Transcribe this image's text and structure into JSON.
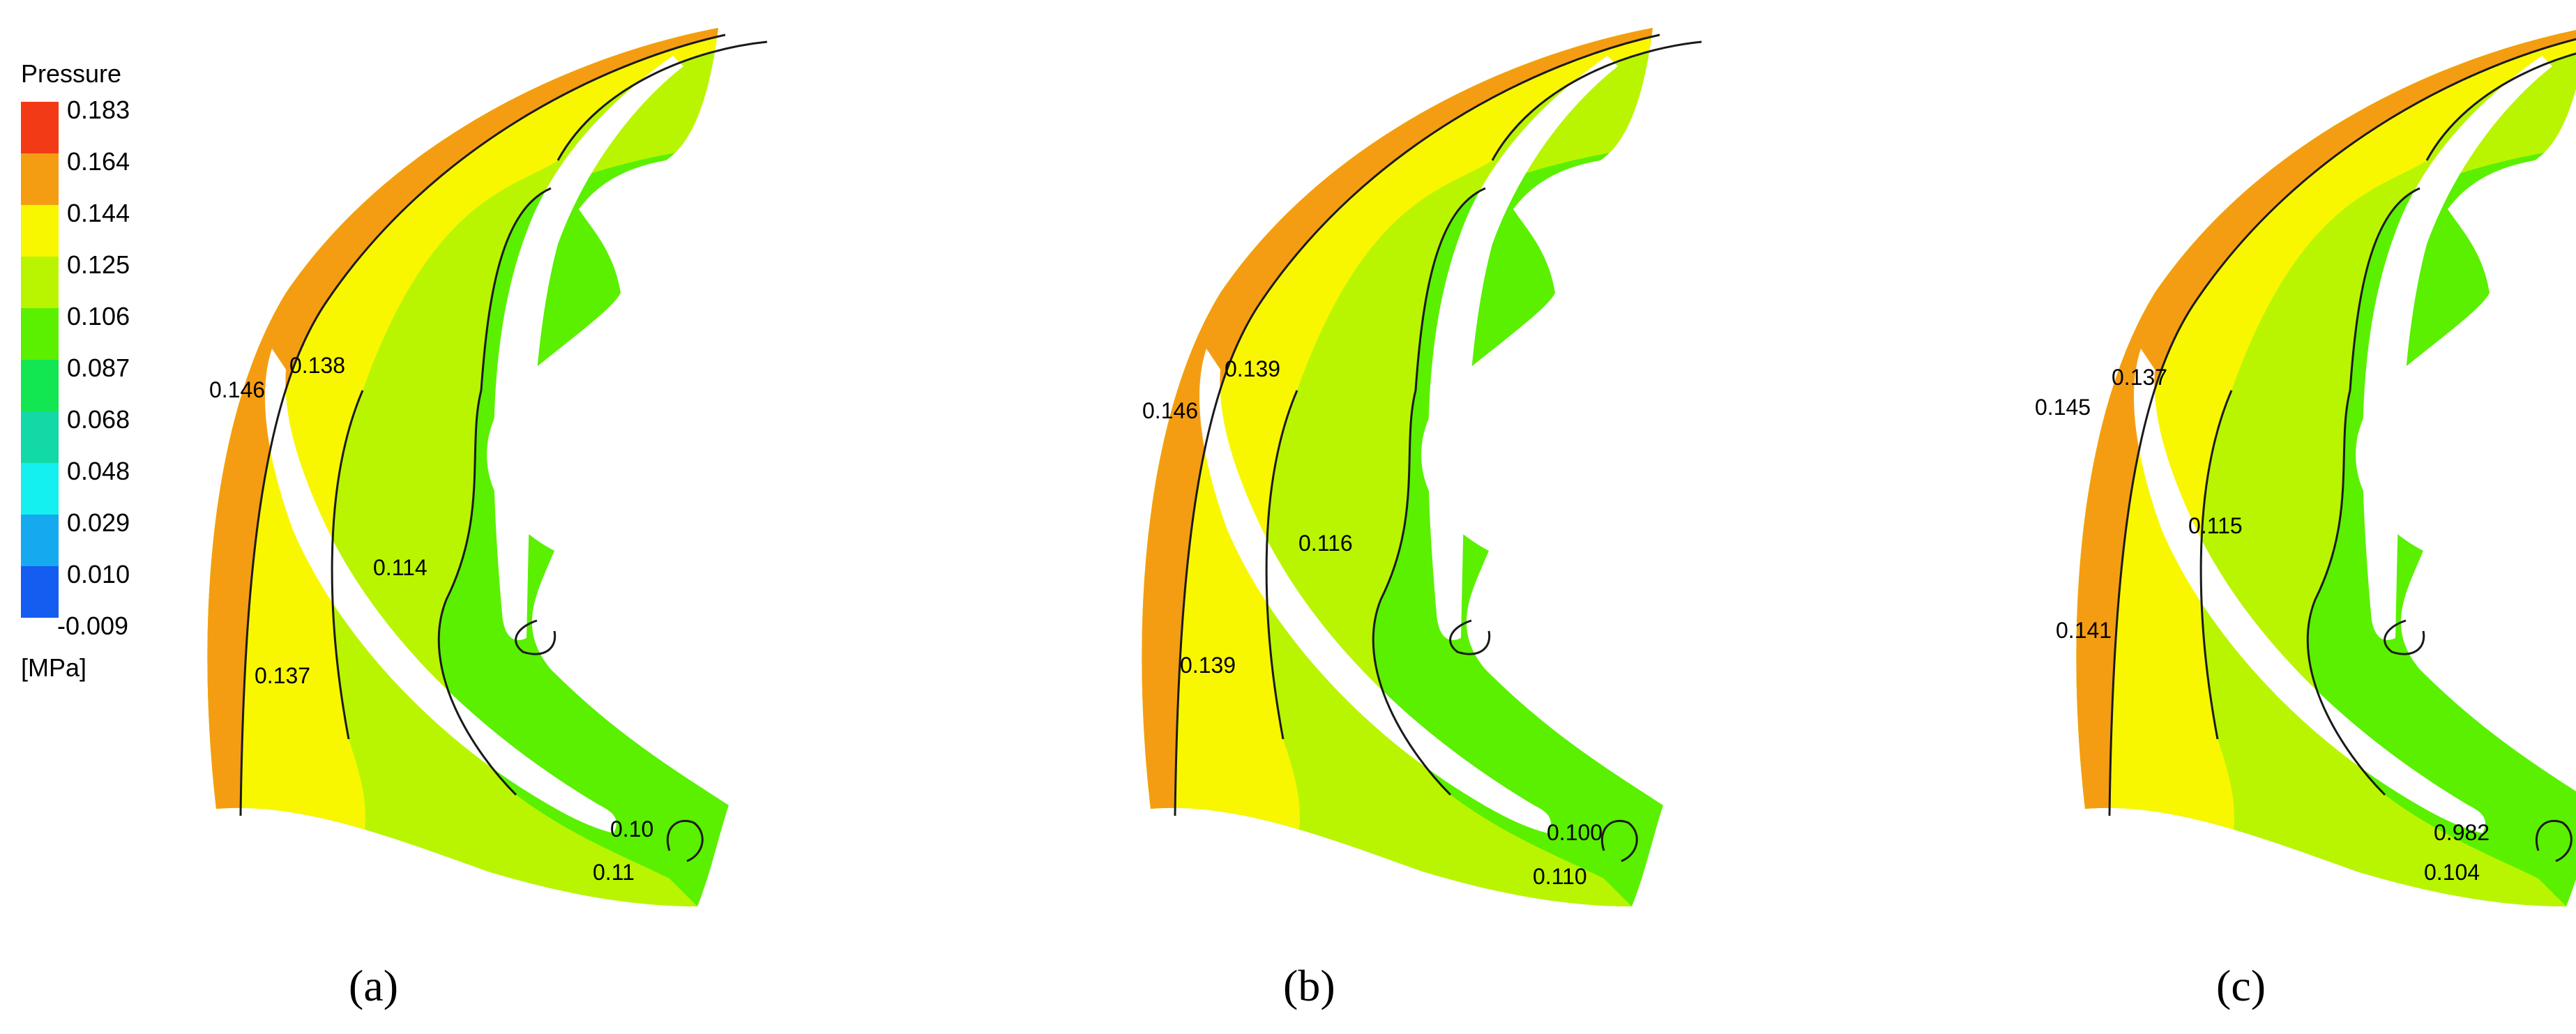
{
  "legend": {
    "title": "Pressure",
    "unit": "[MPa]",
    "ticks": [
      "0.183",
      "0.164",
      "0.144",
      "0.125",
      "0.106",
      "0.087",
      "0.068",
      "0.048",
      "0.029",
      "0.010",
      "-0.009"
    ],
    "colors": [
      "#f23a16",
      "#f59d12",
      "#f8f700",
      "#b9f500",
      "#5af000",
      "#12e650",
      "#12d9a6",
      "#14f0f0",
      "#15aaf0",
      "#155cf0"
    ]
  },
  "zone_colors": {
    "orange": "#f59d12",
    "yellow": "#f8f700",
    "yellow_green": "#b9f500",
    "green": "#5af000"
  },
  "panels": [
    {
      "caption": "(a)",
      "labels": {
        "inlet_tip": "0.146",
        "suction_top": "0.138",
        "mid_passage": "0.114",
        "pressure_side": "0.137",
        "outlet_upper": "0.10",
        "outlet_lower": "0.11"
      }
    },
    {
      "caption": "(b)",
      "labels": {
        "inlet_tip": "0.146",
        "suction_top": "0.139",
        "mid_passage": "0.116",
        "pressure_side": "0.139",
        "outlet_upper": "0.100",
        "outlet_lower": "0.110"
      }
    },
    {
      "caption": "(c)",
      "labels": {
        "inlet_tip": "0.145",
        "suction_top": "0.137",
        "mid_passage": "0.115",
        "pressure_side": "0.141",
        "outlet_upper": "0.982",
        "outlet_lower": "0.104"
      }
    }
  ]
}
